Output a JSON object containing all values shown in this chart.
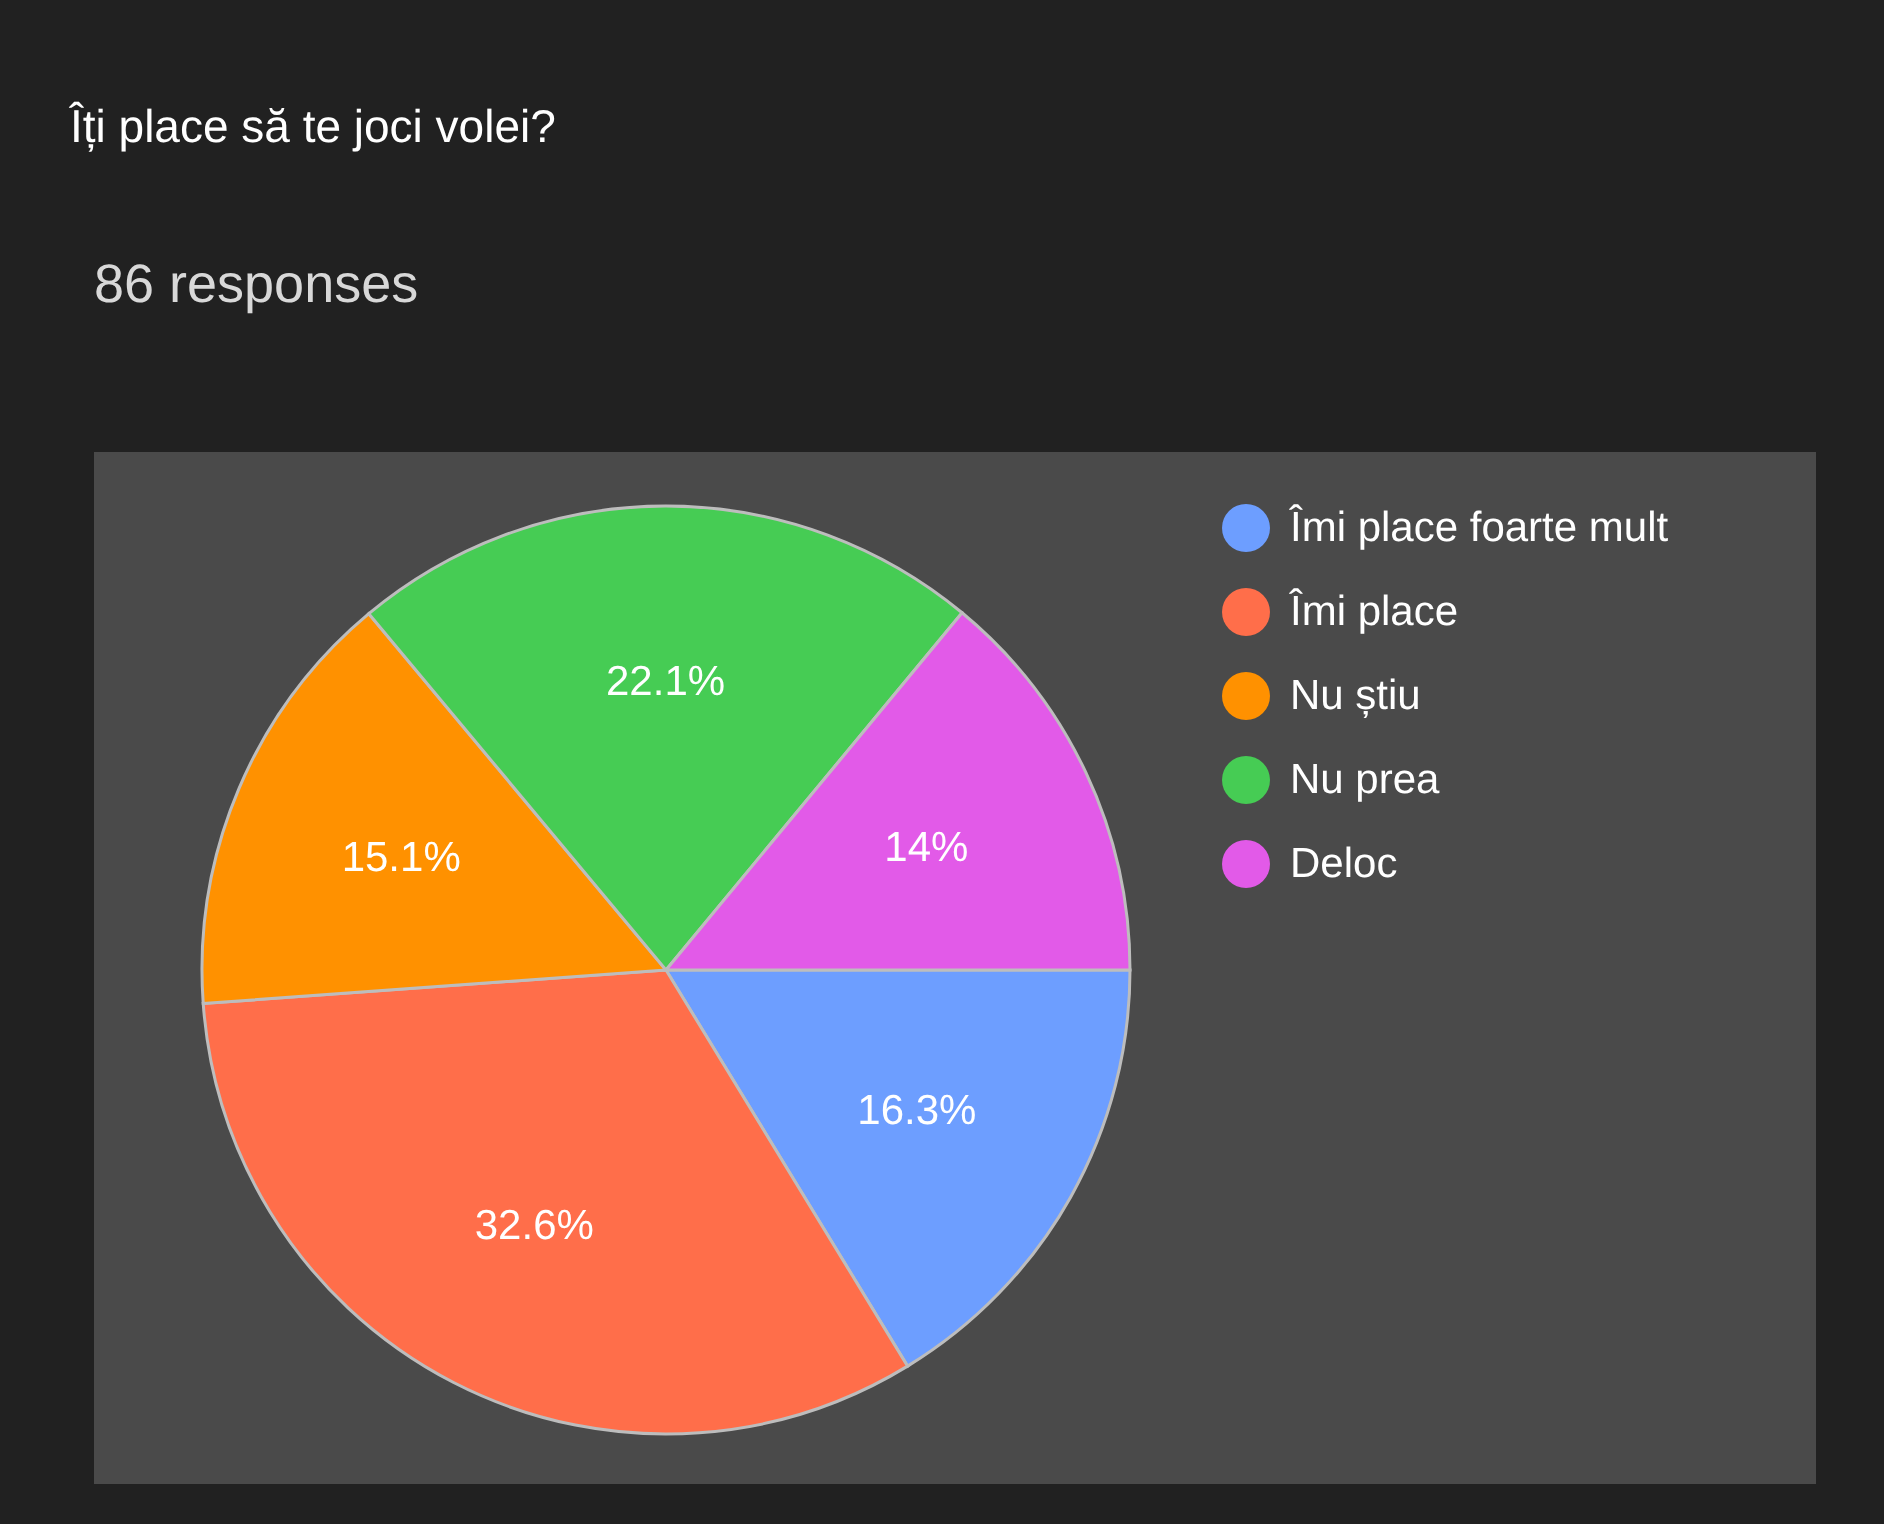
{
  "chart_data": {
    "type": "pie",
    "title": "Îți place să te joci volei?",
    "subtitle": "86 responses",
    "categories": [
      "Îmi place foarte mult",
      "Îmi place",
      "Nu știu",
      "Nu prea",
      "Deloc"
    ],
    "values": [
      16.3,
      32.6,
      15.1,
      22.1,
      14
    ],
    "colors": [
      "#6d9eff",
      "#ff6e4a",
      "#ff9100",
      "#46cc54",
      "#e25ae8"
    ],
    "value_labels": [
      "16.3%",
      "32.6%",
      "15.1%",
      "22.1%",
      "14%"
    ],
    "legend": "top right"
  }
}
